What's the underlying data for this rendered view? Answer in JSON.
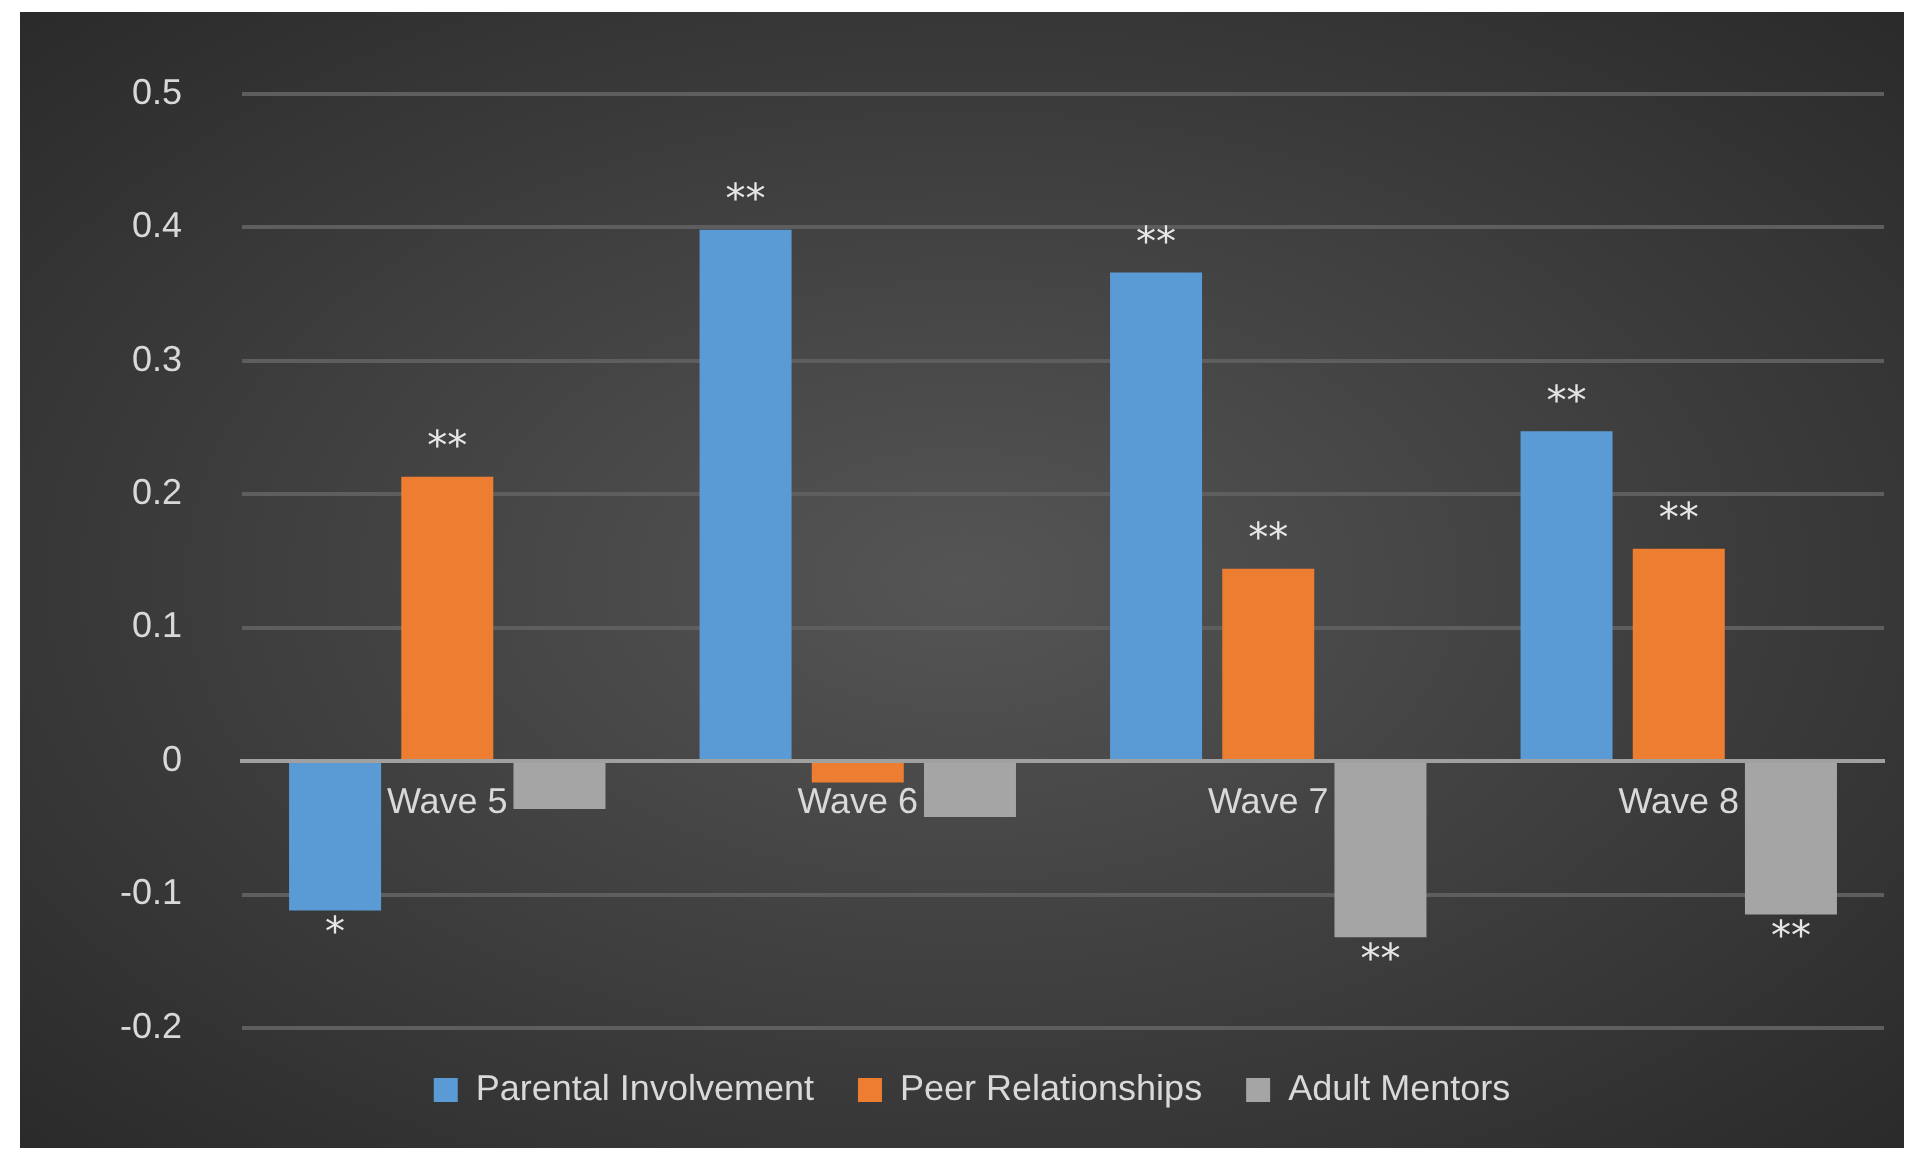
{
  "chart_data": {
    "type": "bar",
    "categories": [
      "Wave 5",
      "Wave 6",
      "Wave 7",
      "Wave 8"
    ],
    "series": [
      {
        "name": "Parental Involvement",
        "color": "#5b9bd5",
        "values": [
          -0.112,
          0.398,
          0.366,
          0.247
        ],
        "value_labels": [
          "*",
          "**",
          "**",
          "**"
        ]
      },
      {
        "name": "Peer Relationships",
        "color": "#ed7d31",
        "values": [
          0.213,
          -0.016,
          0.144,
          0.159
        ],
        "value_labels": [
          "**",
          null,
          "**",
          "**"
        ]
      },
      {
        "name": "Adult Mentors",
        "color": "#a5a5a5",
        "values": [
          -0.036,
          -0.042,
          -0.132,
          -0.115
        ],
        "value_labels": [
          null,
          null,
          "**",
          "**"
        ]
      }
    ],
    "ylim": [
      -0.2,
      0.5
    ],
    "yticks": [
      -0.2,
      -0.1,
      0,
      0.1,
      0.2,
      0.3,
      0.4,
      0.5
    ],
    "grid": "y",
    "legend": "bottom"
  }
}
